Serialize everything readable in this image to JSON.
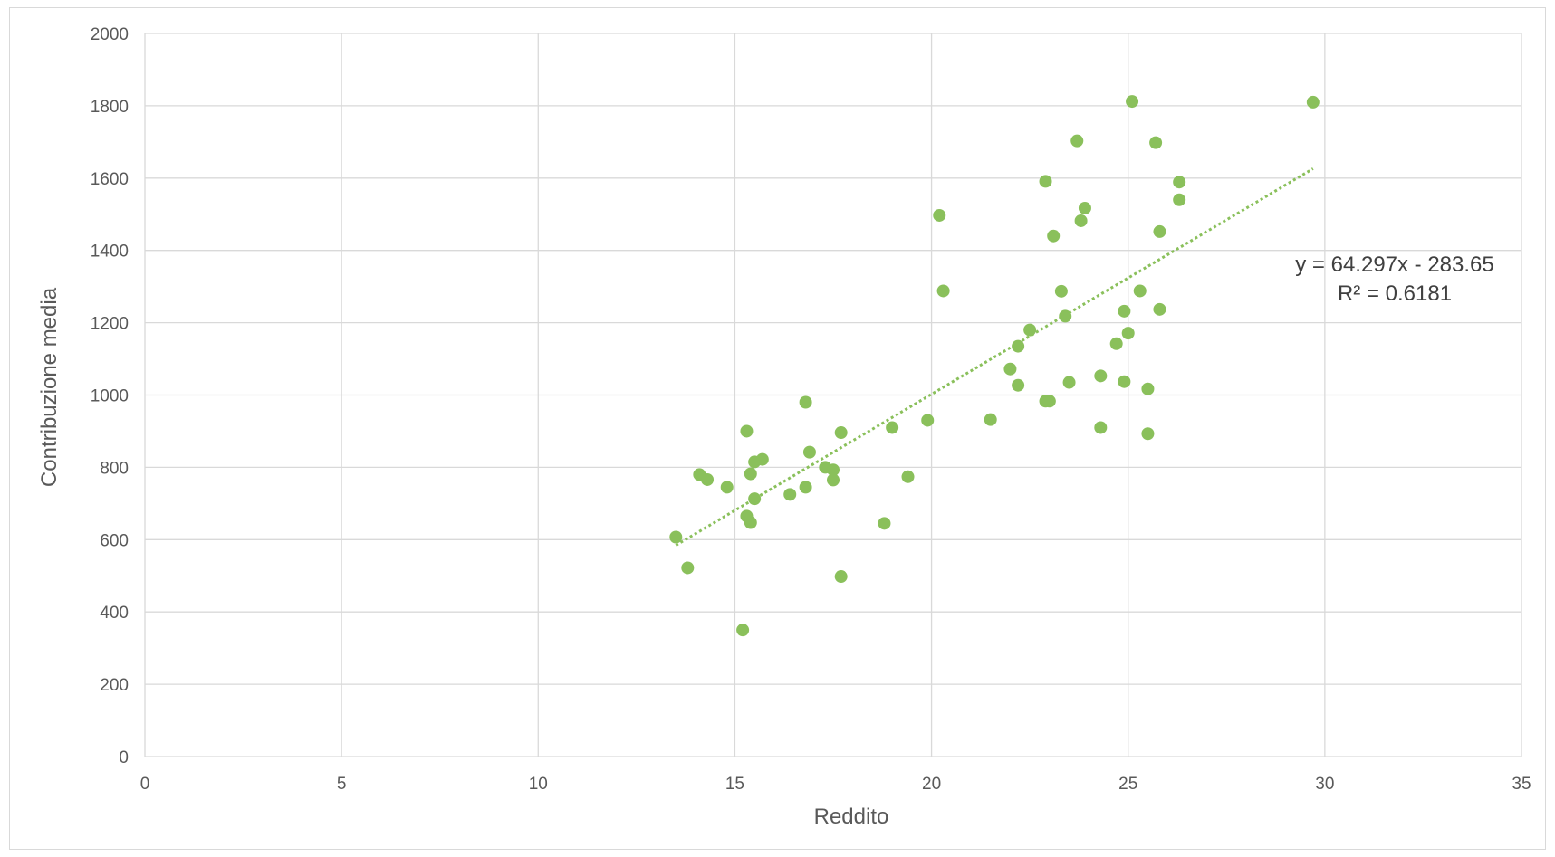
{
  "chart_data": {
    "type": "scatter",
    "title": "",
    "xlabel": "Reddito",
    "ylabel": "Contribuzione media",
    "xlim": [
      0,
      35
    ],
    "ylim": [
      0,
      2000
    ],
    "x_ticks": [
      0,
      5,
      10,
      15,
      20,
      25,
      30,
      35
    ],
    "y_ticks": [
      0,
      200,
      400,
      600,
      800,
      1000,
      1200,
      1400,
      1600,
      1800,
      2000
    ],
    "x_tick_labels": [
      "0",
      "5",
      "10",
      "15",
      "20",
      "25",
      "30",
      "35"
    ],
    "y_tick_labels": [
      "0",
      "200",
      "400",
      "600",
      "800",
      "1000",
      "1200",
      "1400",
      "1600",
      "1800",
      "2000"
    ],
    "grid": true,
    "legend": "none",
    "colors": {
      "points": "#8ac05b",
      "trendline": "#8ac05b",
      "grid": "#d9d9d9",
      "text": "#595959"
    },
    "series": [
      {
        "points": [
          [
            13.5,
            607
          ],
          [
            13.8,
            522
          ],
          [
            14.1,
            780
          ],
          [
            14.3,
            766
          ],
          [
            14.8,
            745
          ],
          [
            15.2,
            350
          ],
          [
            15.3,
            900
          ],
          [
            15.3,
            665
          ],
          [
            15.4,
            647
          ],
          [
            15.4,
            782
          ],
          [
            15.5,
            815
          ],
          [
            15.5,
            713
          ],
          [
            15.7,
            822
          ],
          [
            16.4,
            725
          ],
          [
            16.8,
            980
          ],
          [
            16.8,
            745
          ],
          [
            16.9,
            842
          ],
          [
            17.3,
            800
          ],
          [
            17.5,
            793
          ],
          [
            17.5,
            765
          ],
          [
            17.7,
            896
          ],
          [
            17.7,
            498
          ],
          [
            18.8,
            645
          ],
          [
            19.0,
            910
          ],
          [
            19.4,
            774
          ],
          [
            19.9,
            930
          ],
          [
            20.2,
            1497
          ],
          [
            20.3,
            1288
          ],
          [
            21.5,
            932
          ],
          [
            22.0,
            1072
          ],
          [
            22.2,
            1135
          ],
          [
            22.2,
            1027
          ],
          [
            22.5,
            1180
          ],
          [
            22.9,
            1591
          ],
          [
            22.9,
            983
          ],
          [
            23.0,
            983
          ],
          [
            23.1,
            1440
          ],
          [
            23.3,
            1287
          ],
          [
            23.4,
            1218
          ],
          [
            23.5,
            1035
          ],
          [
            23.7,
            1703
          ],
          [
            23.8,
            1482
          ],
          [
            23.9,
            1517
          ],
          [
            24.3,
            1053
          ],
          [
            24.3,
            910
          ],
          [
            24.7,
            1142
          ],
          [
            24.9,
            1232
          ],
          [
            24.9,
            1037
          ],
          [
            25.0,
            1171
          ],
          [
            25.1,
            1812
          ],
          [
            25.3,
            1288
          ],
          [
            25.5,
            1017
          ],
          [
            25.5,
            893
          ],
          [
            25.7,
            1698
          ],
          [
            25.8,
            1452
          ],
          [
            25.8,
            1237
          ],
          [
            26.3,
            1589
          ],
          [
            26.3,
            1540
          ],
          [
            29.7,
            1810
          ]
        ]
      }
    ],
    "trendline": {
      "slope": 64.297,
      "intercept": -283.65,
      "x_range": [
        13.5,
        29.7
      ],
      "equation_label": "y = 64.297x - 283.65",
      "r2_label": "R² = 0.6181"
    }
  }
}
